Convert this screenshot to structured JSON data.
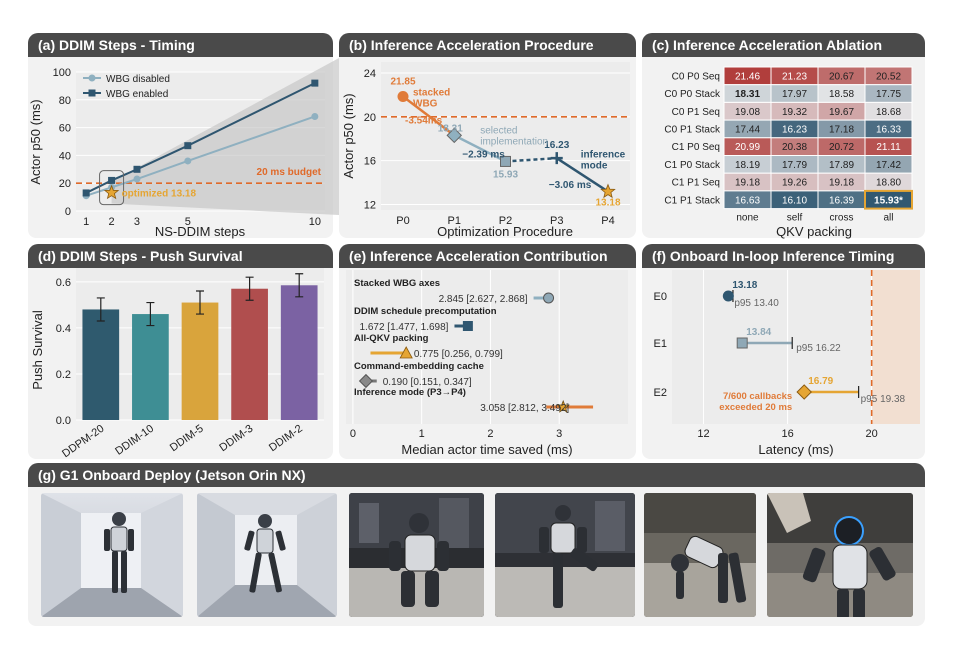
{
  "figure": {
    "panel_a_title": "(a) DDIM Steps - Timing",
    "panel_b_title": "(b) Inference Acceleration Procedure",
    "panel_c_title": "(c) Inference Acceleration Ablation",
    "panel_d_title": "(d) DDIM Steps - Push Survival",
    "panel_e_title": "(e) Inference Acceleration Contribution",
    "panel_f_title": "(f) Onboard In-loop Inference Timing",
    "panel_g_title": "(g) G1 Onboard Deploy (Jetson Orin NX)"
  },
  "colors": {
    "light": "#8fb0c0",
    "dark": "#2f5670",
    "orange": "#e07b39",
    "gold": "#e5a533",
    "budget": "#e06a2a"
  },
  "chart_data": [
    {
      "id": "a",
      "type": "line",
      "xlabel": "NS-DDIM steps",
      "ylabel": "Actor p50 (ms)",
      "xticks": [
        1,
        2,
        3,
        5,
        10
      ],
      "yticks": [
        0,
        20,
        40,
        60,
        80,
        100
      ],
      "xlim": [
        0.6,
        10.4
      ],
      "ylim": [
        0,
        100
      ],
      "series": [
        {
          "name": "WBG disabled",
          "x": [
            1,
            2,
            3,
            5,
            10
          ],
          "values": [
            11,
            17,
            23,
            36,
            68
          ]
        },
        {
          "name": "WBG enabled",
          "x": [
            1,
            2,
            3,
            5,
            10
          ],
          "values": [
            13,
            22,
            30,
            47,
            92
          ]
        }
      ],
      "budget": {
        "value": 20,
        "label": "20 ms budget"
      },
      "highlight": {
        "x": 2,
        "value": 13.18,
        "label": "optimized 13.18"
      }
    },
    {
      "id": "b",
      "type": "line",
      "xlabel": "Optimization Procedure",
      "ylabel": "Actor p50 (ms)",
      "categories": [
        "P0",
        "P1",
        "P2",
        "P3",
        "P4"
      ],
      "yticks": [
        12,
        16,
        20,
        24
      ],
      "ylim": [
        11.5,
        25
      ],
      "points": [
        21.85,
        18.31,
        15.93,
        16.23,
        13.18
      ],
      "point_labels": [
        "21.85",
        "18.31",
        "15.93",
        "16.23",
        "13.18"
      ],
      "budget": 20,
      "annotations": [
        {
          "text": "stacked",
          "text2": "WBG"
        },
        {
          "text": "-3.54ms"
        },
        {
          "text": "selected",
          "text2": "implementation"
        },
        {
          "text": "−2.39 ms"
        },
        {
          "text": "inference",
          "text2": "mode"
        },
        {
          "text": "−3.06 ms"
        }
      ]
    },
    {
      "id": "c",
      "type": "heatmap",
      "xlabel": "QKV packing",
      "columns": [
        "none",
        "self",
        "cross",
        "all"
      ],
      "rows": [
        "C0 P0 Seq",
        "C0 P0 Stack",
        "C0 P1 Seq",
        "C0 P1 Stack",
        "C1 P0 Seq",
        "C1 P0 Stack",
        "C1 P1 Seq",
        "C1 P1 Stack"
      ],
      "values": [
        [
          21.46,
          21.23,
          20.67,
          20.52
        ],
        [
          18.31,
          17.97,
          18.58,
          17.75
        ],
        [
          19.08,
          19.32,
          19.67,
          18.68
        ],
        [
          17.44,
          16.23,
          17.18,
          16.33
        ],
        [
          20.99,
          20.38,
          20.72,
          21.11
        ],
        [
          18.19,
          17.79,
          17.89,
          17.42
        ],
        [
          19.18,
          19.26,
          19.18,
          18.8
        ],
        [
          16.63,
          16.1,
          16.39,
          15.93
        ]
      ],
      "cell_labels": [
        [
          "21.46",
          "21.23",
          "20.67",
          "20.52"
        ],
        [
          "18.31",
          "17.97",
          "18.58",
          "17.75"
        ],
        [
          "19.08",
          "19.32",
          "19.67",
          "18.68"
        ],
        [
          "17.44",
          "16.23",
          "17.18",
          "16.33"
        ],
        [
          "20.99",
          "20.38",
          "20.72",
          "21.11"
        ],
        [
          "18.19",
          "17.79",
          "17.89",
          "17.42"
        ],
        [
          "19.18",
          "19.26",
          "19.18",
          "18.80"
        ],
        [
          "16.63",
          "16.10",
          "16.39",
          "15.93*"
        ]
      ],
      "best": [
        7,
        3
      ]
    },
    {
      "id": "d",
      "type": "bar",
      "ylabel": "Push Survival",
      "categories": [
        "DDPM-20",
        "DDIM-10",
        "DDIM-5",
        "DDIM-3",
        "DDIM-2"
      ],
      "values": [
        0.48,
        0.46,
        0.51,
        0.57,
        0.585
      ],
      "errors": [
        0.05,
        0.05,
        0.05,
        0.05,
        0.05
      ],
      "colors": [
        "#2f5a6e",
        "#3e8e94",
        "#d9a43c",
        "#b04e4e",
        "#7b62a3"
      ],
      "yticks": [
        0.0,
        0.2,
        0.4,
        0.6
      ],
      "ylim": [
        0,
        0.66
      ]
    },
    {
      "id": "e",
      "type": "scatter",
      "xlabel": "Median actor time saved (ms)",
      "xticks": [
        0,
        1,
        2,
        3
      ],
      "xlim": [
        -0.1,
        4.0
      ],
      "rows": [
        {
          "label": "Stacked WBG axes",
          "value": 2.845,
          "lo": 2.627,
          "hi": 2.868,
          "ci": "2.845 [2.627, 2.868]",
          "marker": "circle"
        },
        {
          "label": "DDIM schedule precomputation",
          "value": 1.672,
          "lo": 1.477,
          "hi": 1.698,
          "ci": "1.672 [1.477, 1.698]",
          "marker": "square"
        },
        {
          "label": "All-QKV packing",
          "value": 0.775,
          "lo": 0.256,
          "hi": 0.799,
          "ci": "0.775 [0.256, 0.799]",
          "marker": "triangle"
        },
        {
          "label": "Command-embedding cache",
          "value": 0.19,
          "lo": 0.151,
          "hi": 0.347,
          "ci": "0.190 [0.151, 0.347]",
          "marker": "diamond"
        },
        {
          "label": "Inference mode (P3→P4)",
          "value": 3.058,
          "lo": 2.812,
          "hi": 3.492,
          "ci": "3.058 [2.812, 3.492]",
          "marker": "star"
        }
      ]
    },
    {
      "id": "f",
      "type": "scatter",
      "xlabel": "Latency (ms)",
      "xticks": [
        12,
        16,
        20
      ],
      "xlim": [
        10.5,
        22.3
      ],
      "rows": [
        {
          "label": "E0",
          "median": 13.18,
          "p95": 13.4,
          "median_label": "13.18",
          "p95_label": "p95 13.40"
        },
        {
          "label": "E1",
          "median": 13.84,
          "p95": 16.22,
          "median_label": "13.84",
          "p95_label": "p95 16.22"
        },
        {
          "label": "E2",
          "median": 16.79,
          "p95": 19.38,
          "median_label": "16.79",
          "p95_label": "p95 19.38",
          "note": "7/600 callbacks",
          "note2": "exceeded 20 ms"
        }
      ],
      "budget": 20
    }
  ],
  "photos": [
    {
      "name": "robot-standing-hallway"
    },
    {
      "name": "robot-walking-hallway"
    },
    {
      "name": "robot-crouching-lobby"
    },
    {
      "name": "robot-leg-raise-lobby"
    },
    {
      "name": "robot-bending-over"
    },
    {
      "name": "robot-pushed-by-hand"
    }
  ]
}
